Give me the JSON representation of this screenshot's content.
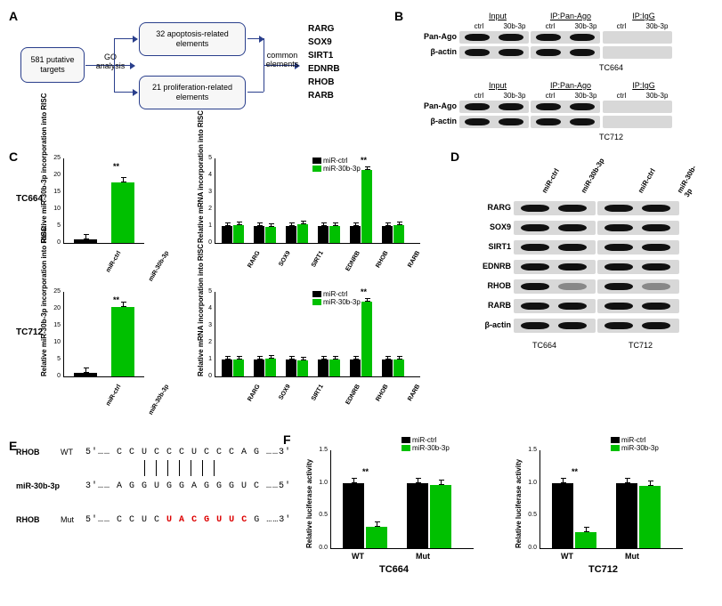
{
  "panelA": {
    "label": "A",
    "box1": "581 putative targets",
    "step1": "GO analysis",
    "box2": "32 apoptosis-related elements",
    "box3": "21 proliferation-related elements",
    "step2": "common elements",
    "genes": [
      "RARG",
      "SOX9",
      "SIRT1",
      "EDNRB",
      "RHOB",
      "RARB"
    ]
  },
  "panelB": {
    "label": "B",
    "headers": [
      "Input",
      "IP:Pan-Ago",
      "IP:IgG"
    ],
    "lanes": [
      "ctrl",
      "30b-3p"
    ],
    "rows": [
      "Pan-Ago",
      "β-actin"
    ],
    "cells": [
      "TC664",
      "TC712"
    ]
  },
  "panelC": {
    "label": "C",
    "cells": [
      "TC664",
      "TC712"
    ],
    "leftCharts": {
      "ylabel": "Relative miR-30b-3p incorporation into RISC",
      "xlabels": [
        "miR-ctrl",
        "miR-30b-3p"
      ],
      "ymax": 25,
      "TC664": [
        1,
        18
      ],
      "TC712": [
        1,
        20.5
      ],
      "colors": [
        "#000000",
        "#00c000"
      ]
    },
    "rightCharts": {
      "ylabel": "Relative mRNA incorporation into RISC",
      "genes": [
        "RARG",
        "SOX9",
        "SIRT1",
        "EDNRB",
        "RHOB",
        "RARB"
      ],
      "ymax": 5,
      "legend": [
        "miR-ctrl",
        "miR-30b-3p"
      ],
      "legend_colors": [
        "#000000",
        "#00c000"
      ],
      "TC664": {
        "ctrl": [
          1.0,
          1.0,
          1.0,
          1.0,
          1.0,
          1.0
        ],
        "mir": [
          1.05,
          0.95,
          1.1,
          1.0,
          4.3,
          1.05
        ]
      },
      "TC712": {
        "ctrl": [
          1.0,
          1.0,
          1.0,
          1.0,
          1.0,
          1.0
        ],
        "mir": [
          1.0,
          1.05,
          0.95,
          1.0,
          4.4,
          1.0
        ]
      }
    }
  },
  "panelD": {
    "label": "D",
    "lanes": [
      "miR-ctrl",
      "miR-30b-3p",
      "miR-ctrl",
      "miR-30b-3p"
    ],
    "proteins": [
      "RARG",
      "SOX9",
      "SIRT1",
      "EDNRB",
      "RHOB",
      "RARB",
      "β-actin"
    ],
    "cells": [
      "TC664",
      "TC712"
    ],
    "band_intensity": {
      "RARG": [
        1,
        1,
        1,
        1
      ],
      "SOX9": [
        1,
        1,
        1,
        1
      ],
      "SIRT1": [
        1,
        1,
        1,
        1
      ],
      "EDNRB": [
        1,
        1,
        1,
        1
      ],
      "RHOB": [
        1,
        0.25,
        1,
        0.25
      ],
      "RARB": [
        1,
        1,
        1,
        1
      ],
      "β-actin": [
        1,
        1,
        1,
        1
      ]
    }
  },
  "panelE": {
    "label": "E",
    "rows": [
      {
        "name": "RHOB",
        "variant": "WT",
        "seq": "5'…… C C U C C C U C C C A G ……3'"
      },
      {
        "name": "miR-30b-3p",
        "variant": "",
        "seq": "3'…… A G G U G G A G G G U C ……5'"
      },
      {
        "name": "RHOB",
        "variant": "Mut",
        "seq": "5'…… C C U C U A C G U U C G ……3'",
        "mut_start": 4,
        "mut_len": 7
      }
    ]
  },
  "panelF": {
    "label": "F",
    "ylabel": "Relative luciferase activity",
    "legend": [
      "miR-ctrl",
      "miR-30b-3p"
    ],
    "legend_colors": [
      "#000000",
      "#00c000"
    ],
    "cells": [
      "TC664",
      "TC712"
    ],
    "xlabels": [
      "WT",
      "Mut"
    ],
    "ymax": 1.5,
    "TC664": {
      "ctrl": [
        1.0,
        1.0
      ],
      "mir": [
        0.33,
        0.97
      ]
    },
    "TC712": {
      "ctrl": [
        1.0,
        1.0
      ],
      "mir": [
        0.25,
        0.96
      ]
    }
  }
}
